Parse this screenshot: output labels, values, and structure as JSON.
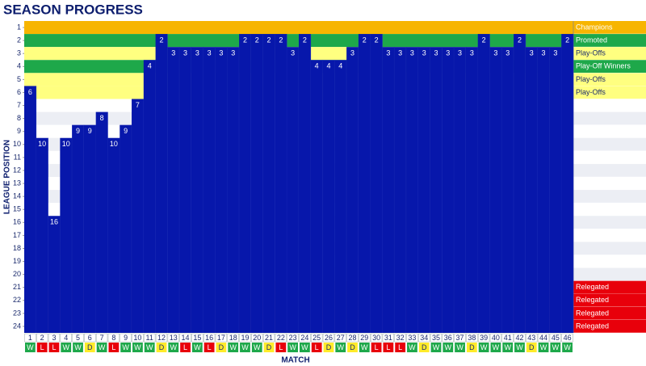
{
  "chart_data": {
    "type": "position-bar",
    "title": "SEASON PROGRESS",
    "xlabel": "MATCH",
    "ylabel": "LEAGUE POSITION",
    "categories": [
      "1",
      "2",
      "3",
      "4",
      "5",
      "6",
      "7",
      "8",
      "9",
      "10",
      "11",
      "12",
      "13",
      "14",
      "15",
      "16",
      "17",
      "18",
      "19",
      "20",
      "21",
      "22",
      "23",
      "24",
      "25",
      "26",
      "27",
      "28",
      "29",
      "30",
      "31",
      "32",
      "33",
      "34",
      "35",
      "36",
      "37",
      "38",
      "39",
      "40",
      "41",
      "42",
      "43",
      "44",
      "45",
      "46"
    ],
    "values": [
      6,
      10,
      16,
      10,
      9,
      9,
      8,
      10,
      9,
      7,
      4,
      2,
      3,
      3,
      3,
      3,
      3,
      3,
      2,
      2,
      2,
      2,
      3,
      2,
      4,
      4,
      4,
      3,
      2,
      2,
      3,
      3,
      3,
      3,
      3,
      3,
      3,
      3,
      2,
      3,
      3,
      2,
      3,
      3,
      3,
      2
    ],
    "results": [
      "W",
      "L",
      "L",
      "W",
      "W",
      "D",
      "W",
      "L",
      "W",
      "W",
      "W",
      "D",
      "W",
      "L",
      "W",
      "L",
      "D",
      "W",
      "W",
      "W",
      "D",
      "L",
      "W",
      "W",
      "L",
      "D",
      "W",
      "D",
      "W",
      "L",
      "L",
      "L",
      "W",
      "D",
      "W",
      "W",
      "W",
      "D",
      "W",
      "W",
      "W",
      "W",
      "D",
      "W",
      "W",
      "W"
    ],
    "result_colors": {
      "W": "#1ea84a",
      "L": "#e8000b",
      "D": "#ffeb2a"
    },
    "color": "#0717ab",
    "ylim": [
      0.5,
      24.5
    ],
    "yticks": [
      1,
      2,
      3,
      4,
      5,
      6,
      7,
      8,
      9,
      10,
      11,
      12,
      13,
      14,
      15,
      16,
      17,
      18,
      19,
      20,
      21,
      22,
      23,
      24
    ],
    "zones": [
      {
        "label": "Champions",
        "color": "#f7b500"
      },
      {
        "label": "Promoted",
        "color": "#1ea84a"
      },
      {
        "label": "Play-Offs",
        "color": "#ffff80"
      },
      {
        "label": "Play-Off Winners",
        "color": "#1ea84a"
      },
      {
        "label": "Play-Offs",
        "color": "#ffff80"
      },
      {
        "label": "Play-Offs",
        "color": "#ffff80"
      },
      {
        "label": null,
        "color": "#ffffff"
      },
      {
        "label": null,
        "color": "#eceef4"
      },
      {
        "label": null,
        "color": "#ffffff"
      },
      {
        "label": null,
        "color": "#eceef4"
      },
      {
        "label": null,
        "color": "#ffffff"
      },
      {
        "label": null,
        "color": "#eceef4"
      },
      {
        "label": null,
        "color": "#ffffff"
      },
      {
        "label": null,
        "color": "#eceef4"
      },
      {
        "label": null,
        "color": "#ffffff"
      },
      {
        "label": null,
        "color": "#eceef4"
      },
      {
        "label": null,
        "color": "#ffffff"
      },
      {
        "label": null,
        "color": "#eceef4"
      },
      {
        "label": null,
        "color": "#ffffff"
      },
      {
        "label": null,
        "color": "#eceef4"
      },
      {
        "label": "Relegated",
        "color": "#e8000b"
      },
      {
        "label": "Relegated",
        "color": "#e8000b"
      },
      {
        "label": "Relegated",
        "color": "#e8000b"
      },
      {
        "label": "Relegated",
        "color": "#e8000b"
      }
    ]
  }
}
